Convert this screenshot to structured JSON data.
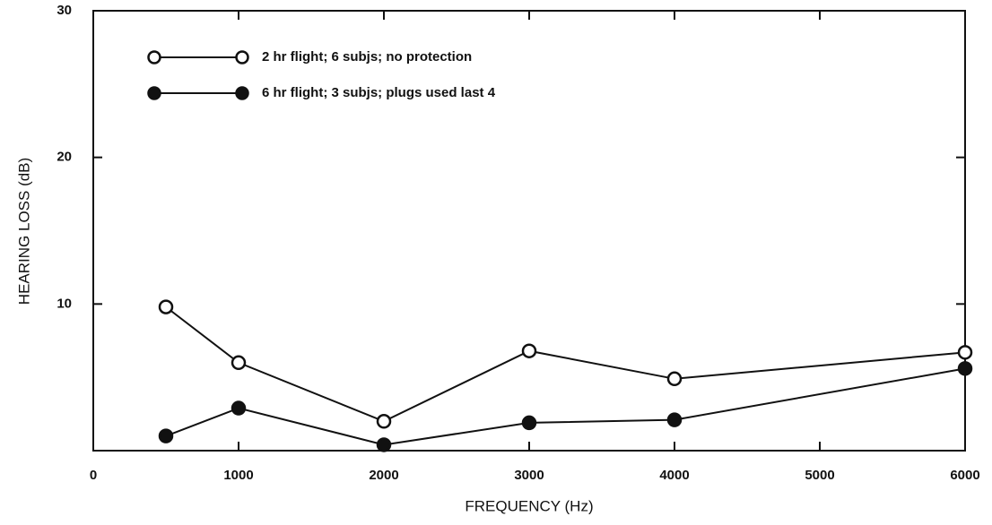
{
  "chart_data": {
    "type": "line",
    "xlabel": "FREQUENCY (Hz)",
    "ylabel": "HEARING LOSS (dB)",
    "x": [
      500,
      1000,
      2000,
      3000,
      4000,
      6000
    ],
    "series": [
      {
        "name": "2 hr flight; 6 subjs; no protection",
        "color": "#111111",
        "marker": "open",
        "values": [
          9.8,
          6.0,
          2.0,
          6.8,
          4.9,
          6.7
        ]
      },
      {
        "name": "6 hr flight; 3 subjs; plugs used last 4",
        "color": "#111111",
        "marker": "filled",
        "values": [
          1.0,
          2.9,
          0.4,
          1.9,
          2.1,
          5.6
        ]
      }
    ],
    "xlim": [
      0,
      6000
    ],
    "xticks": [
      0,
      1000,
      2000,
      3000,
      4000,
      5000,
      6000
    ],
    "ylim": [
      0,
      30
    ],
    "yticks": [
      10,
      20,
      30
    ],
    "legend": "upper left"
  }
}
